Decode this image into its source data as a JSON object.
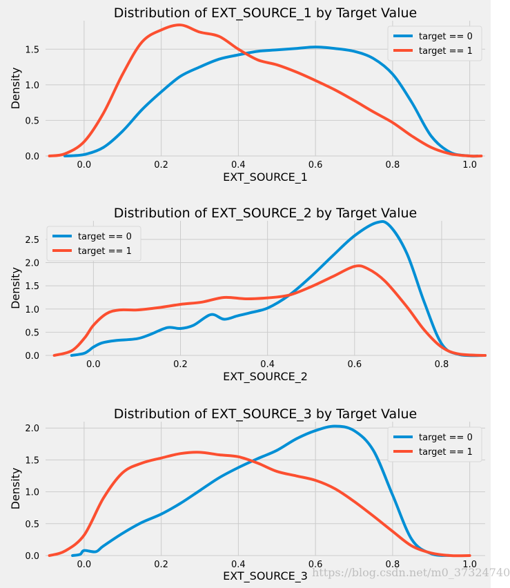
{
  "colors": {
    "target0": "#008fd5",
    "target1": "#fc4f30",
    "panel_bg": "#f0f0f0",
    "grid": "#cbcbcb",
    "text": "#000000"
  },
  "watermark": "https://blog.csdn.net/m0_37324740",
  "chart_data": [
    {
      "type": "line",
      "title": "Distribution of EXT_SOURCE_1 by Target Value",
      "xlabel": "EXT_SOURCE_1",
      "ylabel": "Density",
      "xlim": [
        -0.1,
        1.04
      ],
      "ylim": [
        0,
        1.9
      ],
      "xticks": [
        0.0,
        0.2,
        0.4,
        0.6,
        0.8,
        1.0
      ],
      "xtick_labels": [
        "0.0",
        "0.2",
        "0.4",
        "0.6",
        "0.8",
        "1.0"
      ],
      "yticks": [
        0.0,
        0.5,
        1.0,
        1.5
      ],
      "ytick_labels": [
        "0.0",
        "0.5",
        "1.0",
        "1.5"
      ],
      "grid": true,
      "legend_position": "top-right",
      "series": [
        {
          "name": "target == 0",
          "color": "#008fd5",
          "x": [
            -0.05,
            0.0,
            0.05,
            0.1,
            0.15,
            0.2,
            0.25,
            0.3,
            0.35,
            0.4,
            0.45,
            0.5,
            0.55,
            0.6,
            0.65,
            0.7,
            0.75,
            0.8,
            0.85,
            0.9,
            0.95,
            1.0,
            1.02
          ],
          "y": [
            0.0,
            0.02,
            0.12,
            0.35,
            0.65,
            0.9,
            1.12,
            1.25,
            1.36,
            1.42,
            1.47,
            1.49,
            1.51,
            1.53,
            1.51,
            1.47,
            1.37,
            1.15,
            0.75,
            0.28,
            0.05,
            0.0,
            0.0
          ]
        },
        {
          "name": "target == 1",
          "color": "#fc4f30",
          "x": [
            -0.09,
            -0.05,
            0.0,
            0.05,
            0.1,
            0.15,
            0.2,
            0.25,
            0.3,
            0.35,
            0.4,
            0.45,
            0.5,
            0.55,
            0.6,
            0.65,
            0.7,
            0.75,
            0.8,
            0.85,
            0.9,
            0.95,
            1.0,
            1.03
          ],
          "y": [
            0.0,
            0.03,
            0.2,
            0.6,
            1.15,
            1.6,
            1.77,
            1.84,
            1.74,
            1.68,
            1.5,
            1.35,
            1.28,
            1.18,
            1.06,
            0.93,
            0.78,
            0.62,
            0.47,
            0.28,
            0.12,
            0.03,
            0.0,
            0.0
          ]
        }
      ]
    },
    {
      "type": "line",
      "title": "Distribution of EXT_SOURCE_2 by Target Value",
      "xlabel": "EXT_SOURCE_2",
      "ylabel": "Density",
      "xlim": [
        -0.11,
        0.9
      ],
      "ylim": [
        0,
        2.9
      ],
      "xticks": [
        0.0,
        0.2,
        0.4,
        0.6,
        0.8
      ],
      "xtick_labels": [
        "0.0",
        "0.2",
        "0.4",
        "0.6",
        "0.8"
      ],
      "yticks": [
        0.0,
        0.5,
        1.0,
        1.5,
        2.0,
        2.5
      ],
      "ytick_labels": [
        "0.0",
        "0.5",
        "1.0",
        "1.5",
        "2.0",
        "2.5"
      ],
      "grid": true,
      "legend_position": "top-left",
      "series": [
        {
          "name": "target == 0",
          "color": "#008fd5",
          "x": [
            -0.05,
            -0.02,
            0.0,
            0.02,
            0.05,
            0.1,
            0.13,
            0.17,
            0.2,
            0.23,
            0.27,
            0.3,
            0.33,
            0.36,
            0.4,
            0.45,
            0.5,
            0.55,
            0.6,
            0.65,
            0.68,
            0.72,
            0.76,
            0.8,
            0.84,
            0.9
          ],
          "y": [
            0.0,
            0.05,
            0.18,
            0.27,
            0.32,
            0.36,
            0.45,
            0.6,
            0.58,
            0.65,
            0.88,
            0.78,
            0.85,
            0.92,
            1.02,
            1.3,
            1.7,
            2.15,
            2.58,
            2.86,
            2.8,
            2.2,
            1.15,
            0.25,
            0.02,
            0.0
          ]
        },
        {
          "name": "target == 1",
          "color": "#fc4f30",
          "x": [
            -0.09,
            -0.05,
            -0.02,
            0.0,
            0.03,
            0.06,
            0.1,
            0.15,
            0.2,
            0.25,
            0.3,
            0.35,
            0.4,
            0.45,
            0.5,
            0.55,
            0.6,
            0.63,
            0.67,
            0.72,
            0.76,
            0.8,
            0.84,
            0.9
          ],
          "y": [
            0.0,
            0.1,
            0.38,
            0.65,
            0.9,
            0.98,
            0.98,
            1.03,
            1.1,
            1.15,
            1.25,
            1.22,
            1.24,
            1.3,
            1.48,
            1.7,
            1.92,
            1.87,
            1.6,
            1.05,
            0.55,
            0.18,
            0.03,
            0.0
          ]
        }
      ]
    },
    {
      "type": "line",
      "title": "Distribution of EXT_SOURCE_3 by Target Value",
      "xlabel": "EXT_SOURCE_3",
      "ylabel": "Density",
      "xlim": [
        -0.1,
        1.04
      ],
      "ylim": [
        0,
        2.1
      ],
      "xticks": [
        0.0,
        0.2,
        0.4,
        0.6,
        0.8,
        1.0
      ],
      "xtick_labels": [
        "0.0",
        "0.2",
        "0.4",
        "0.6",
        "0.8",
        "1.0"
      ],
      "yticks": [
        0.0,
        0.5,
        1.0,
        1.5,
        2.0
      ],
      "ytick_labels": [
        "0.0",
        "0.5",
        "1.0",
        "1.5",
        "2.0"
      ],
      "grid": true,
      "legend_position": "top-right",
      "series": [
        {
          "name": "target == 0",
          "color": "#008fd5",
          "x": [
            -0.03,
            -0.01,
            0.0,
            0.03,
            0.05,
            0.1,
            0.15,
            0.2,
            0.25,
            0.3,
            0.35,
            0.4,
            0.45,
            0.5,
            0.55,
            0.6,
            0.65,
            0.7,
            0.75,
            0.8,
            0.85,
            0.9,
            0.95
          ],
          "y": [
            0.0,
            0.02,
            0.08,
            0.06,
            0.15,
            0.35,
            0.52,
            0.65,
            0.82,
            1.02,
            1.22,
            1.38,
            1.52,
            1.65,
            1.83,
            1.96,
            2.03,
            1.96,
            1.65,
            0.95,
            0.25,
            0.03,
            0.0
          ]
        },
        {
          "name": "target == 1",
          "color": "#fc4f30",
          "x": [
            -0.09,
            -0.05,
            0.0,
            0.05,
            0.1,
            0.15,
            0.2,
            0.25,
            0.3,
            0.35,
            0.4,
            0.45,
            0.5,
            0.55,
            0.6,
            0.65,
            0.7,
            0.75,
            0.8,
            0.85,
            0.9,
            0.95,
            1.0
          ],
          "y": [
            0.0,
            0.07,
            0.32,
            0.9,
            1.3,
            1.45,
            1.53,
            1.6,
            1.62,
            1.58,
            1.55,
            1.45,
            1.32,
            1.25,
            1.18,
            1.05,
            0.85,
            0.62,
            0.38,
            0.15,
            0.04,
            0.0,
            0.0
          ]
        }
      ]
    }
  ]
}
